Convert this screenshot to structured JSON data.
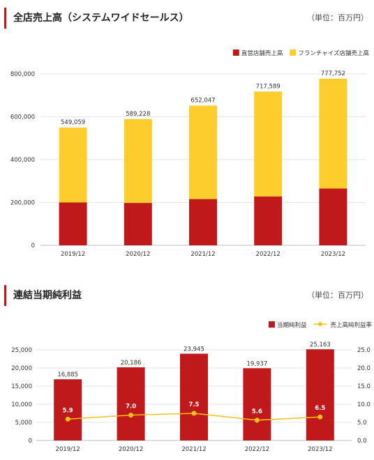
{
  "colors": {
    "direct": "#c0191b",
    "franchise": "#fccd2d",
    "net": "#c0191b",
    "ratio": "#f6c11b",
    "accent": "#c0161b"
  },
  "sections": [
    {
      "title": "全店売上高（システムワイドセールス）",
      "unit": "（単位：百万円）",
      "legend": [
        {
          "label": "直営店舗売上高",
          "marker": "square",
          "color": "#c0191b"
        },
        {
          "label": "フランチャイズ店舗売上高",
          "marker": "square",
          "color": "#fccd2d"
        }
      ]
    },
    {
      "title": "連結当期純利益",
      "unit": "（単位：百万円）",
      "legend": [
        {
          "label": "当期純利益",
          "marker": "square",
          "color": "#c0191b"
        },
        {
          "label": "売上高純利益率",
          "marker": "line",
          "color": "#f6c11b"
        }
      ]
    }
  ],
  "chart_data": [
    {
      "type": "bar",
      "stacked": true,
      "categories": [
        "2019/12",
        "2020/12",
        "2021/12",
        "2022/12",
        "2023/12"
      ],
      "series": [
        {
          "name": "直営店舗売上高",
          "values": [
            200000,
            198000,
            216000,
            228000,
            265000
          ]
        },
        {
          "name": "フランチャイズ店舗売上高",
          "values": [
            349059,
            391228,
            436047,
            489589,
            512752
          ]
        }
      ],
      "totals": [
        549059,
        589228,
        652047,
        717589,
        777752
      ],
      "total_labels": [
        "549,059",
        "589,228",
        "652,047",
        "717,589",
        "777,752"
      ],
      "yticks": [
        "0",
        "200,000",
        "400,000",
        "600,000",
        "800,000"
      ],
      "ylim": [
        0,
        800000
      ],
      "grid": true,
      "legend_position": "top-right"
    },
    {
      "type": "bar",
      "categories": [
        "2019/12",
        "2020/12",
        "2021/12",
        "2022/12",
        "2023/12"
      ],
      "series": [
        {
          "name": "当期純利益",
          "type": "bar",
          "axis": "left",
          "values": [
            16885,
            20186,
            23945,
            19937,
            25163
          ]
        },
        {
          "name": "売上高純利益率",
          "type": "line",
          "axis": "right",
          "values": [
            5.9,
            7.0,
            7.5,
            5.6,
            6.5
          ]
        }
      ],
      "bar_labels": [
        "16,885",
        "20,186",
        "23,945",
        "19,937",
        "25,163"
      ],
      "line_labels": [
        "5.9",
        "7.0",
        "7.5",
        "5.6",
        "6.5"
      ],
      "yticks_left": [
        "0",
        "5,000",
        "10,000",
        "15,000",
        "20,000",
        "25,000"
      ],
      "yticks_right": [
        "0.0",
        "5.0",
        "10.0",
        "15.0",
        "20.0",
        "25.0"
      ],
      "ylim": [
        0,
        25000
      ],
      "ylim_right": [
        0,
        25
      ],
      "grid": true,
      "legend_position": "top-right"
    }
  ]
}
